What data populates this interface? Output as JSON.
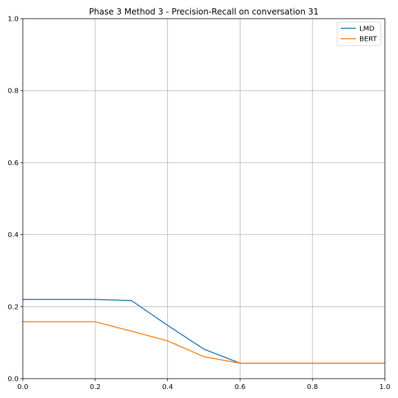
{
  "chart_data": {
    "type": "line",
    "title": "Phase 3 Method 3 - Precision-Recall on conversation 31",
    "xlabel": "",
    "ylabel": "",
    "xlim": [
      0.0,
      1.0
    ],
    "ylim": [
      0.0,
      1.0
    ],
    "x_ticks": [
      "0.0",
      "0.2",
      "0.4",
      "0.6",
      "0.8",
      "1.0"
    ],
    "y_ticks": [
      "0.0",
      "0.2",
      "0.4",
      "0.6",
      "0.8",
      "1.0"
    ],
    "grid": true,
    "legend_position": "top-right",
    "series": [
      {
        "name": "LMD",
        "color": "#1f77b4",
        "x": [
          0.0,
          0.1,
          0.2,
          0.3,
          0.4,
          0.5,
          0.6,
          0.7,
          0.8,
          0.9,
          1.0
        ],
        "y": [
          0.22,
          0.22,
          0.22,
          0.217,
          0.148,
          0.082,
          0.043,
          0.043,
          0.043,
          0.043,
          0.043
        ]
      },
      {
        "name": "BERT",
        "color": "#ff7f0e",
        "x": [
          0.0,
          0.1,
          0.2,
          0.3,
          0.4,
          0.5,
          0.6,
          0.7,
          0.8,
          0.9,
          1.0
        ],
        "y": [
          0.158,
          0.158,
          0.158,
          0.132,
          0.105,
          0.061,
          0.043,
          0.043,
          0.043,
          0.043,
          0.043
        ]
      }
    ]
  }
}
